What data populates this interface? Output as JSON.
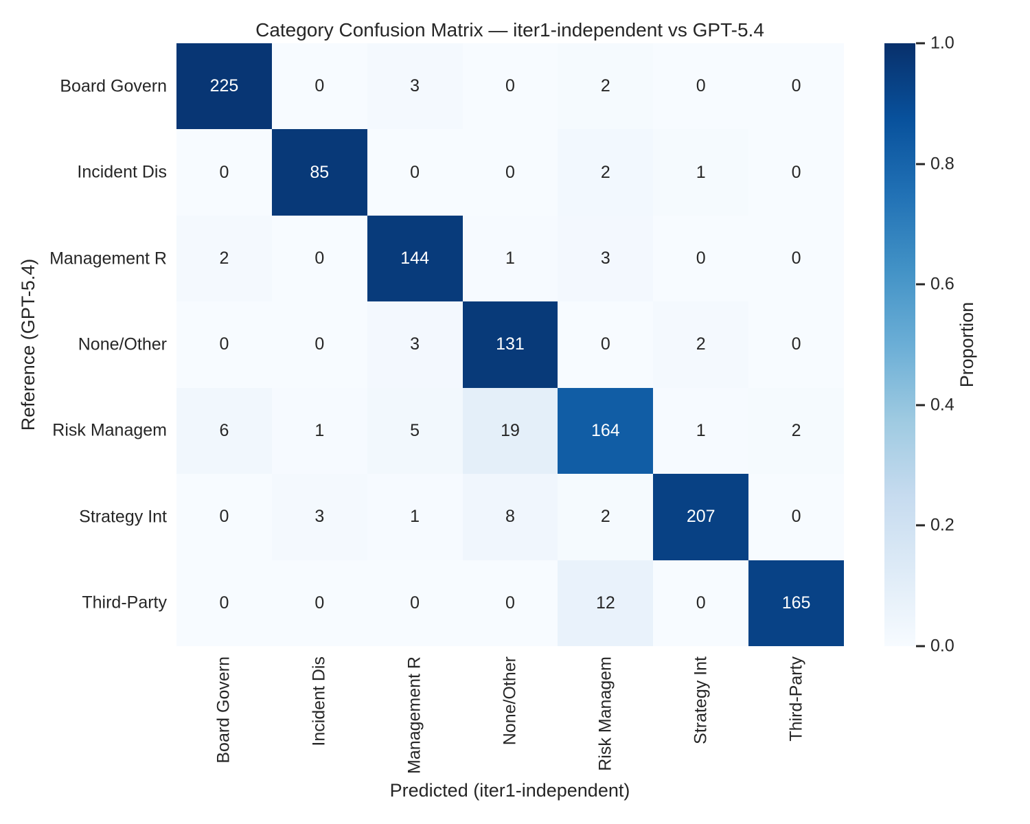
{
  "title": "Category Confusion Matrix — iter1-independent vs GPT-5.4",
  "chart_data": {
    "type": "heatmap",
    "title": "Category Confusion Matrix — iter1-independent vs GPT-5.4",
    "xlabel": "Predicted (iter1-independent)",
    "ylabel": "Reference (GPT-5.4)",
    "categories_x": [
      "Board Govern",
      "Incident Dis",
      "Management R",
      "None/Other",
      "Risk Managem",
      "Strategy Int",
      "Third-Party"
    ],
    "categories_y": [
      "Board Govern",
      "Incident Dis",
      "Management R",
      "None/Other",
      "Risk Managem",
      "Strategy Int",
      "Third-Party"
    ],
    "matrix": [
      [
        225,
        0,
        3,
        0,
        2,
        0,
        0
      ],
      [
        0,
        85,
        0,
        0,
        2,
        1,
        0
      ],
      [
        2,
        0,
        144,
        1,
        3,
        0,
        0
      ],
      [
        0,
        0,
        3,
        131,
        0,
        2,
        0
      ],
      [
        6,
        1,
        5,
        19,
        164,
        1,
        2
      ],
      [
        0,
        3,
        1,
        8,
        2,
        207,
        0
      ],
      [
        0,
        0,
        0,
        0,
        12,
        0,
        165
      ]
    ],
    "normalization": "row_proportion",
    "grid": false,
    "colorbar": {
      "label": "Proportion",
      "ticks": [
        1.0,
        0.8,
        0.6,
        0.4,
        0.2,
        0.0
      ],
      "tick_labels": [
        "1.0",
        "0.8",
        "0.6",
        "0.4",
        "0.2",
        "0.0"
      ],
      "position": "right"
    },
    "colormap": {
      "name": "Blues",
      "stops": [
        [
          0.0,
          "#f7fbff"
        ],
        [
          0.125,
          "#deebf7"
        ],
        [
          0.25,
          "#c6dbef"
        ],
        [
          0.375,
          "#9ecae1"
        ],
        [
          0.5,
          "#6baed6"
        ],
        [
          0.625,
          "#4292c6"
        ],
        [
          0.75,
          "#2171b5"
        ],
        [
          0.875,
          "#08519c"
        ],
        [
          1.0,
          "#08306b"
        ]
      ]
    },
    "annotation_text_colors": {
      "light": "#ffffff",
      "dark": "#262626"
    },
    "light_text_threshold": 0.5
  }
}
